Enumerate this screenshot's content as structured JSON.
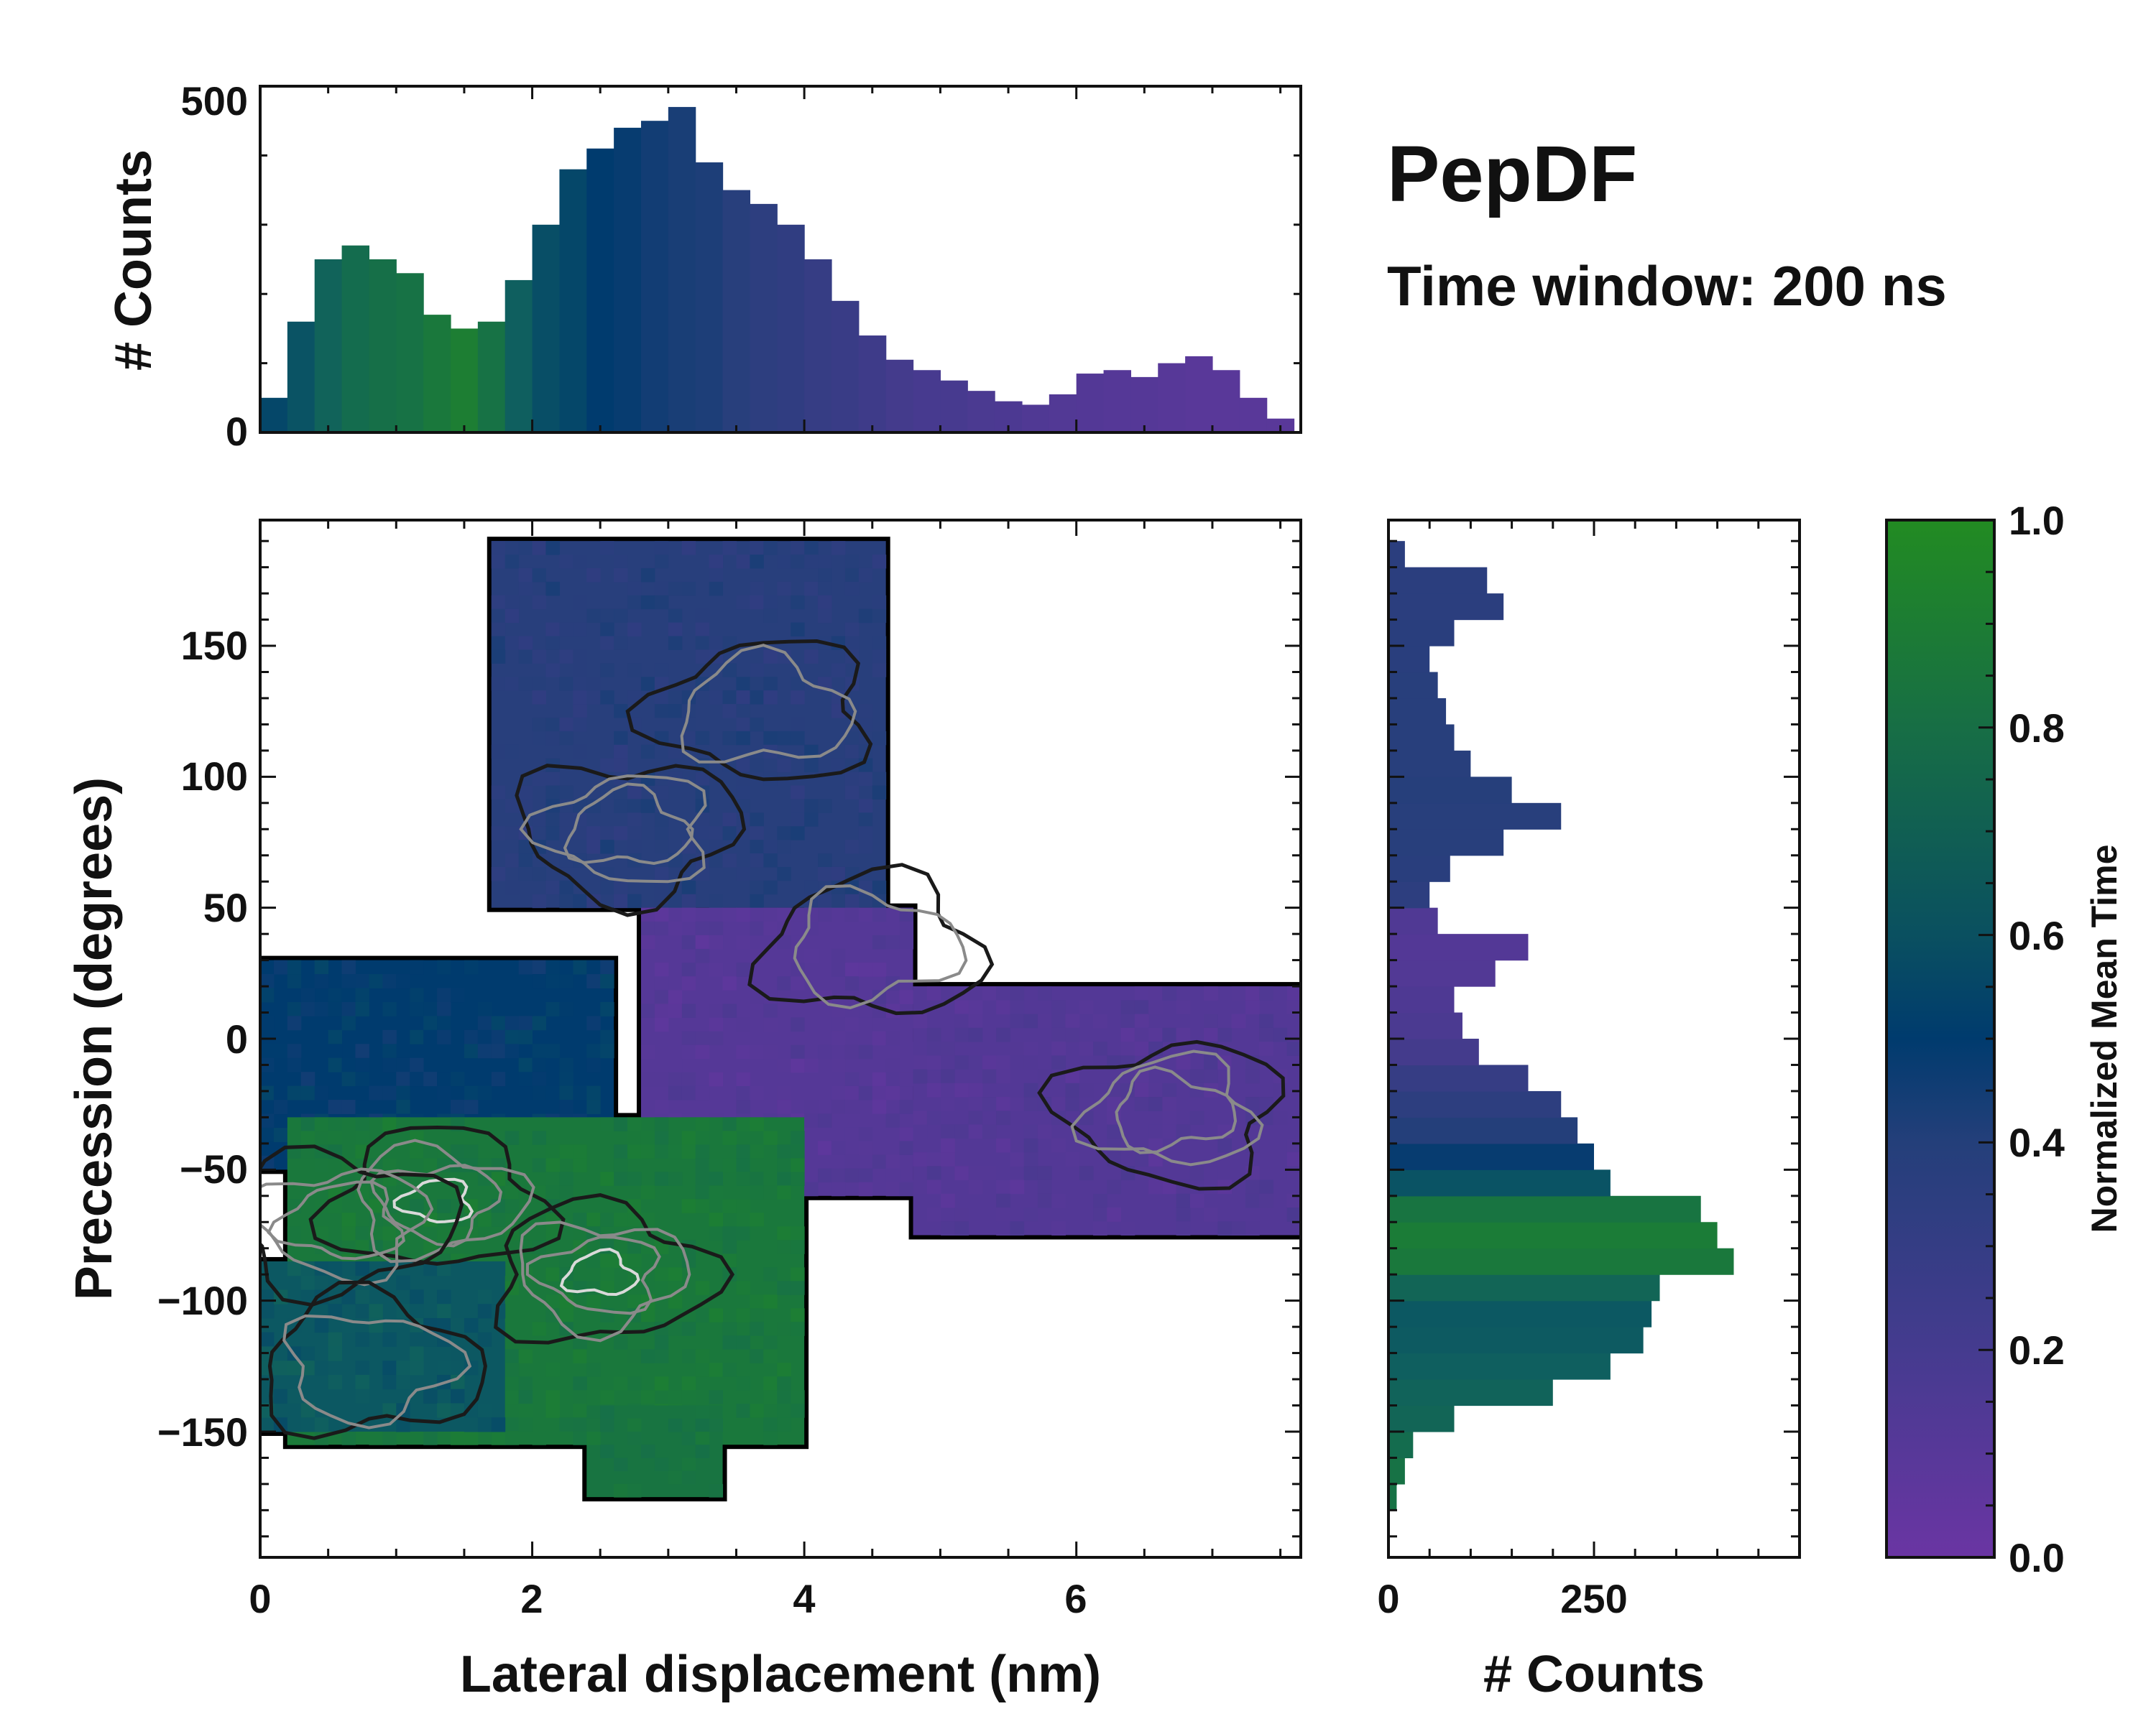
{
  "title": "PepDF",
  "subtitle": "Time window: 200 ns",
  "colors": {
    "purple": "#6a35a3",
    "blue": "#243f7a",
    "navy": "#003b6e",
    "teal": "#0f5f5f",
    "green": "#228b22",
    "white_outline": "#ffffff",
    "contour_dark": "#1a1a1a",
    "contour_grey": "#8a8a8a"
  },
  "chart_data": [
    {
      "id": "top-histogram",
      "type": "bar",
      "ylabel": "# Counts",
      "xlim": [
        0,
        7.65
      ],
      "ylim": [
        0,
        500
      ],
      "yticks": [
        "0",
        "500"
      ],
      "bin_centers": [
        0.1,
        0.3,
        0.5,
        0.7,
        0.9,
        1.1,
        1.3,
        1.5,
        1.7,
        1.9,
        2.1,
        2.3,
        2.5,
        2.7,
        2.9,
        3.1,
        3.3,
        3.5,
        3.7,
        3.9,
        4.1,
        4.3,
        4.5,
        4.7,
        4.9,
        5.1,
        5.3,
        5.5,
        5.7,
        5.9,
        6.1,
        6.3,
        6.5,
        6.7,
        6.9,
        7.1,
        7.3,
        7.5
      ],
      "counts": [
        50,
        160,
        250,
        270,
        250,
        230,
        170,
        150,
        160,
        220,
        300,
        380,
        410,
        440,
        450,
        470,
        390,
        350,
        330,
        300,
        250,
        190,
        140,
        105,
        90,
        75,
        60,
        45,
        40,
        55,
        85,
        90,
        80,
        100,
        110,
        90,
        50,
        20
      ],
      "color_values": [
        0.55,
        0.6,
        0.68,
        0.75,
        0.78,
        0.8,
        0.85,
        0.9,
        0.8,
        0.65,
        0.58,
        0.55,
        0.5,
        0.48,
        0.45,
        0.43,
        0.42,
        0.38,
        0.35,
        0.33,
        0.3,
        0.28,
        0.25,
        0.22,
        0.2,
        0.2,
        0.18,
        0.17,
        0.15,
        0.14,
        0.13,
        0.12,
        0.12,
        0.11,
        0.1,
        0.1,
        0.1,
        0.1
      ]
    },
    {
      "id": "main-2d-histogram",
      "type": "heatmap",
      "xlabel": "Lateral displacement (nm)",
      "ylabel": "Precession (degrees)",
      "xlim": [
        0,
        7.65
      ],
      "ylim": [
        -198,
        198
      ],
      "xticks": [
        "0",
        "2",
        "4",
        "6"
      ],
      "yticks": [
        "−150",
        "−100",
        "−50",
        "0",
        "50",
        "100",
        "150"
      ],
      "regions": [
        {
          "name": "top-blue",
          "x": [
            1.7,
            4.6
          ],
          "y": [
            50,
            190
          ],
          "value": 0.38
        },
        {
          "name": "mid-purple",
          "x": [
            2.8,
            4.8
          ],
          "y": [
            -60,
            50
          ],
          "value": 0.12
        },
        {
          "name": "left-navy",
          "x": [
            0.0,
            2.6
          ],
          "y": [
            -50,
            30
          ],
          "value": 0.5
        },
        {
          "name": "right-purple",
          "x": [
            4.8,
            7.65
          ],
          "y": [
            -75,
            20
          ],
          "value": 0.13
        },
        {
          "name": "lower-green",
          "x": [
            0.2,
            4.0
          ],
          "y": [
            -155,
            -30
          ],
          "value": 0.85
        },
        {
          "name": "lower-left-teal",
          "x": [
            0.0,
            1.8
          ],
          "y": [
            -150,
            -85
          ],
          "value": 0.62
        },
        {
          "name": "bottom-green",
          "x": [
            2.4,
            3.4
          ],
          "y": [
            -175,
            -140
          ],
          "value": 0.82
        }
      ],
      "density_peaks": [
        {
          "x": 1.3,
          "y": -62,
          "level": "high"
        },
        {
          "x": 2.5,
          "y": -90,
          "level": "high"
        },
        {
          "x": 0.6,
          "y": -70,
          "level": "medium"
        },
        {
          "x": 2.7,
          "y": 80,
          "level": "medium"
        },
        {
          "x": 6.7,
          "y": -28,
          "level": "medium"
        },
        {
          "x": 3.7,
          "y": 125,
          "level": "low"
        },
        {
          "x": 4.5,
          "y": 35,
          "level": "low"
        },
        {
          "x": 0.8,
          "y": -125,
          "level": "low"
        }
      ]
    },
    {
      "id": "right-histogram",
      "type": "bar",
      "orientation": "horizontal",
      "xlabel": "# Counts",
      "xlim": [
        0,
        500
      ],
      "xticks": [
        "0",
        "250"
      ],
      "ylim": [
        -198,
        198
      ],
      "bin_centers": [
        -175,
        -165,
        -155,
        -145,
        -135,
        -125,
        -115,
        -105,
        -95,
        -85,
        -75,
        -65,
        -55,
        -45,
        -35,
        -25,
        -15,
        -5,
        5,
        15,
        25,
        35,
        45,
        55,
        65,
        75,
        85,
        95,
        105,
        115,
        125,
        135,
        145,
        155,
        165,
        175,
        185
      ],
      "counts": [
        10,
        20,
        30,
        80,
        200,
        270,
        310,
        320,
        330,
        420,
        400,
        380,
        270,
        250,
        230,
        210,
        170,
        110,
        90,
        80,
        130,
        170,
        60,
        50,
        75,
        140,
        210,
        150,
        100,
        80,
        70,
        60,
        50,
        80,
        140,
        120,
        20
      ],
      "color_values": [
        0.8,
        0.8,
        0.75,
        0.7,
        0.68,
        0.65,
        0.63,
        0.62,
        0.7,
        0.85,
        0.88,
        0.82,
        0.6,
        0.48,
        0.4,
        0.35,
        0.3,
        0.22,
        0.18,
        0.16,
        0.14,
        0.13,
        0.15,
        0.35,
        0.37,
        0.38,
        0.38,
        0.39,
        0.38,
        0.38,
        0.38,
        0.38,
        0.37,
        0.37,
        0.36,
        0.36,
        0.36
      ]
    },
    {
      "id": "colorbar",
      "type": "colorbar",
      "label": "Normalized Mean Time",
      "range": [
        0.0,
        1.0
      ],
      "ticks": [
        "0.0",
        "0.2",
        "0.4",
        "0.6",
        "0.8",
        "1.0"
      ]
    }
  ]
}
